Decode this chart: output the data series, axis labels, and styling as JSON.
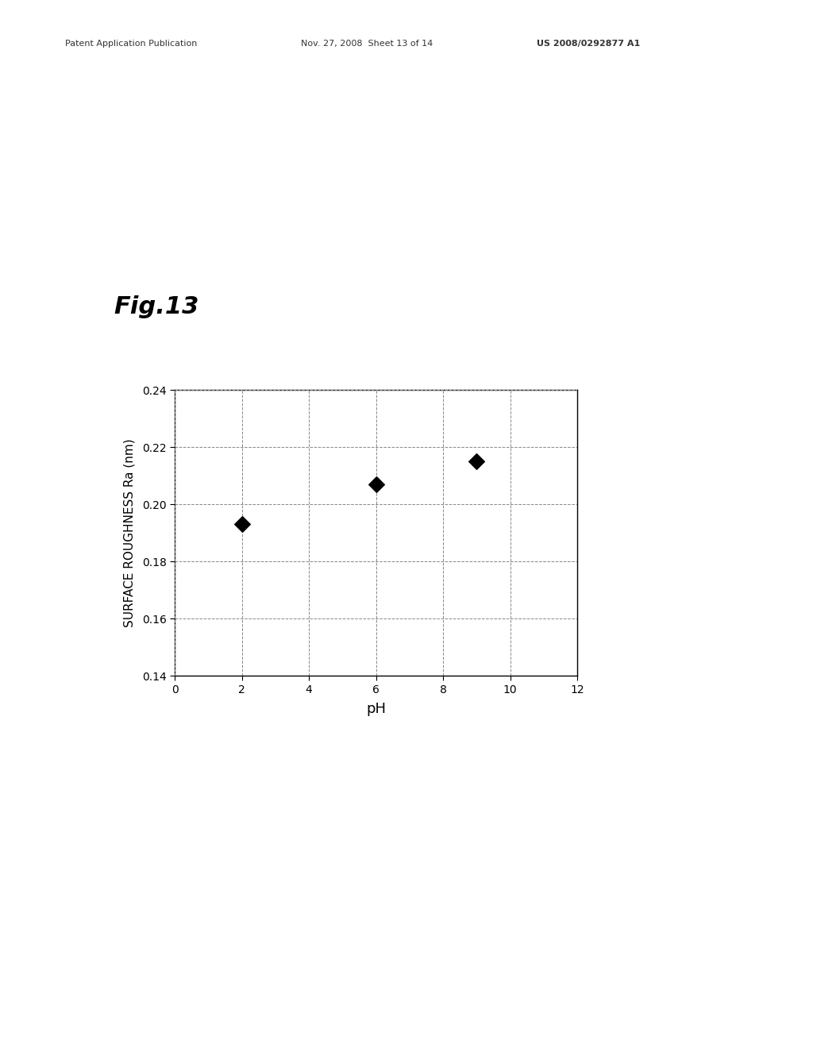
{
  "title": "Fig.13",
  "header_left": "Patent Application Publication",
  "header_mid": "Nov. 27, 2008  Sheet 13 of 14",
  "header_right": "US 2008/0292877 A1",
  "x_data": [
    2,
    6,
    9
  ],
  "y_data": [
    0.193,
    0.207,
    0.215
  ],
  "xlabel": "pH",
  "ylabel": "SURFACE ROUGHNESS Ra (nm)",
  "xlim": [
    0,
    12
  ],
  "ylim": [
    0.14,
    0.24
  ],
  "xticks": [
    0,
    2,
    4,
    6,
    8,
    10,
    12
  ],
  "yticks": [
    0.14,
    0.16,
    0.18,
    0.2,
    0.22,
    0.24
  ],
  "marker_color": "#000000",
  "marker_size": 10,
  "background_color": "#ffffff",
  "grid_color": "#888888",
  "title_fontsize": 22,
  "axis_label_fontsize": 11,
  "tick_fontsize": 10,
  "header_fontsize": 8
}
